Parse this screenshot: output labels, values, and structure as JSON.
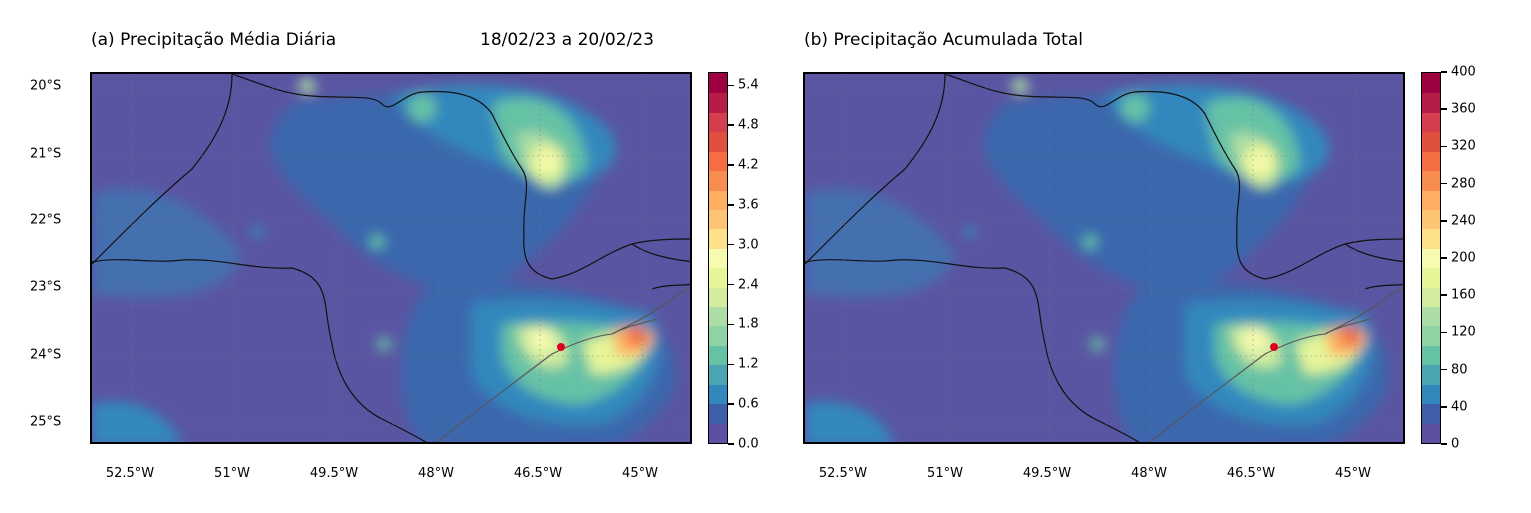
{
  "panel_a": {
    "title": "(a) Precipitação Média Diária",
    "date_range": "18/02/23 a 20/02/23",
    "colorbar_ticks": [
      "0.0",
      "0.6",
      "1.2",
      "1.8",
      "2.4",
      "3.0",
      "3.6",
      "4.2",
      "4.8",
      "5.4"
    ],
    "colorbar_max": 5.6
  },
  "panel_b": {
    "title": "(b) Precipitação Acumulada Total",
    "colorbar_ticks": [
      "0",
      "40",
      "80",
      "120",
      "160",
      "200",
      "240",
      "280",
      "320",
      "360",
      "400"
    ],
    "colorbar_max": 400
  },
  "y_ticks": [
    "20°S",
    "21°S",
    "22°S",
    "23°S",
    "24°S",
    "25°S"
  ],
  "x_ticks": [
    "52.5°W",
    "51°W",
    "49.5°W",
    "48°W",
    "46.5°W",
    "45°W"
  ],
  "colormap": [
    "#5e4fa2",
    "#3f5fa8",
    "#3288bd",
    "#4aa4b2",
    "#66c2a5",
    "#8fd3a4",
    "#abdda4",
    "#d1ec9f",
    "#e6f598",
    "#f7fbb0",
    "#fee08b",
    "#fdc473",
    "#fdae61",
    "#f88d52",
    "#f46d43",
    "#e0503e",
    "#d53e4f",
    "#b51c47",
    "#9e0142"
  ],
  "marker_color": "#e0001b"
}
